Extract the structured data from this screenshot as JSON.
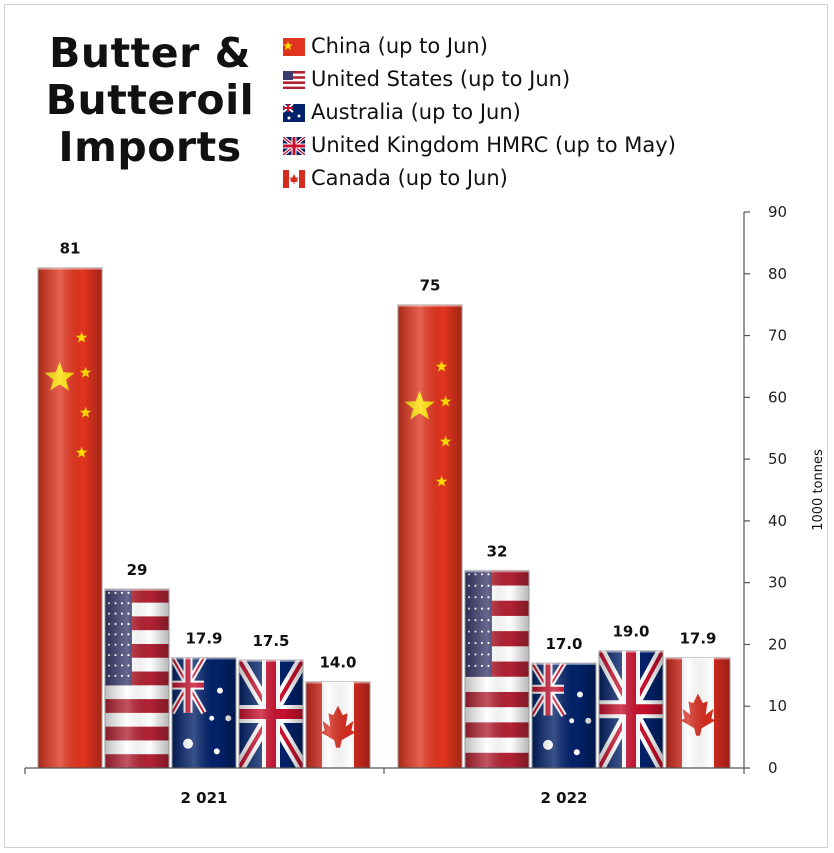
{
  "title": "Butter & Butteroil Imports",
  "chart_data": {
    "type": "bar",
    "title": "Butter & Butteroil Imports",
    "categories": [
      "2 021",
      "2 022"
    ],
    "series": [
      {
        "name": "China (up to Jun)",
        "icon": "china-flag-icon",
        "values": [
          81,
          75
        ],
        "labels": [
          "81",
          "75"
        ]
      },
      {
        "name": "United States (up to Jun)",
        "icon": "us-flag-icon",
        "values": [
          29,
          32
        ],
        "labels": [
          "29",
          "32"
        ]
      },
      {
        "name": "Australia (up to Jun)",
        "icon": "australia-flag-icon",
        "values": [
          17.9,
          17.0
        ],
        "labels": [
          "17.9",
          "17.0"
        ]
      },
      {
        "name": "United Kingdom HMRC (up to May)",
        "icon": "uk-flag-icon",
        "values": [
          17.5,
          19.0
        ],
        "labels": [
          "17.5",
          "19.0"
        ]
      },
      {
        "name": "Canada (up to Jun)",
        "icon": "canada-flag-icon",
        "values": [
          14.0,
          17.9
        ],
        "labels": [
          "14.0",
          "17.9"
        ]
      }
    ],
    "ylabel": "1000 tonnes",
    "ylim": [
      0,
      90
    ],
    "yticks": [
      0,
      10,
      20,
      30,
      40,
      50,
      60,
      70,
      80,
      90
    ],
    "y_axis_side": "right",
    "legend_position": "top-right",
    "grid": false
  },
  "colors": {
    "red": "#d52b1e",
    "china_red": "#e1341e",
    "yellow": "#ffde00",
    "blue": "#012169",
    "us_blue": "#3c3b6e",
    "white": "#ffffff",
    "axis": "#555555"
  }
}
